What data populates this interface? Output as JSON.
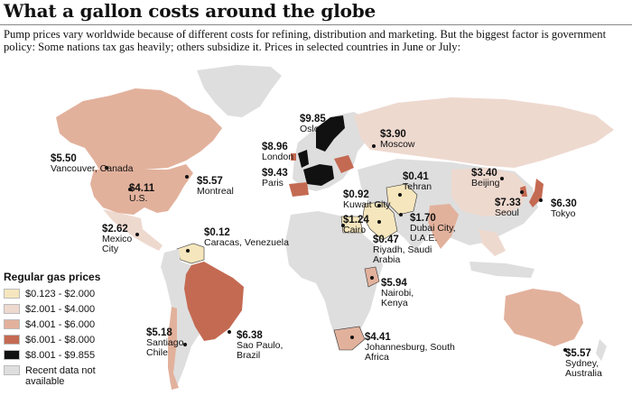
{
  "title": "What a gallon costs around the globe",
  "intro": "Pump prices vary worldwide because of different costs for refining, distribution and marketing. But the biggest factor is government policy: Some nations tax gas heavily; others subsidize it. Prices in selected countries in June or July:",
  "legend": {
    "title": "Regular gas prices",
    "items": [
      {
        "label": "$0.123 - $2.000",
        "color": "#f5e6bd"
      },
      {
        "label": "$2.001 - $4.000",
        "color": "#eed9cf"
      },
      {
        "label": "$4.001 - $6.000",
        "color": "#e2b19c"
      },
      {
        "label": "$6.001 - $8.000",
        "color": "#c46a52"
      },
      {
        "label": "$8.001 - $9.855",
        "color": "#111111"
      },
      {
        "label": "Recent data not available",
        "color": "#dedede"
      }
    ]
  },
  "cities": [
    {
      "key": "vancouver",
      "price": "$5.50",
      "place": "Vancouver, Canada"
    },
    {
      "key": "us",
      "price": "$4.11",
      "place": "U.S."
    },
    {
      "key": "montreal",
      "price": "$5.57",
      "place": "Montreal"
    },
    {
      "key": "mexico",
      "price": "$2.62",
      "place": "Mexico City"
    },
    {
      "key": "caracas",
      "price": "$0.12",
      "place": "Caracas, Venezuela"
    },
    {
      "key": "santiago",
      "price": "$5.18",
      "place": "Santiago, Chile"
    },
    {
      "key": "saopaulo",
      "price": "$6.38",
      "place": "Sao Paulo, Brazil"
    },
    {
      "key": "oslo",
      "price": "$9.85",
      "place": "Oslo"
    },
    {
      "key": "london",
      "price": "$8.96",
      "place": "London"
    },
    {
      "key": "paris",
      "price": "$9.43",
      "place": "Paris"
    },
    {
      "key": "moscow",
      "price": "$3.90",
      "place": "Moscow"
    },
    {
      "key": "tehran",
      "price": "$0.41",
      "place": "Tehran"
    },
    {
      "key": "kuwait",
      "price": "$0.92",
      "place": "Kuwait City"
    },
    {
      "key": "cairo",
      "price": "$1.24",
      "place": "Cairo"
    },
    {
      "key": "dubai",
      "price": "$1.70",
      "place": "Dubai City, U.A.E."
    },
    {
      "key": "riyadh",
      "price": "$0.47",
      "place": "Riyadh, Saudi Arabia"
    },
    {
      "key": "nairobi",
      "price": "$5.94",
      "place": "Nairobi, Kenya"
    },
    {
      "key": "johannesburg",
      "price": "$4.41",
      "place": "Johannesburg, South Africa"
    },
    {
      "key": "beijing",
      "price": "$3.40",
      "place": "Beijing"
    },
    {
      "key": "seoul",
      "price": "$7.33",
      "place": "Seoul"
    },
    {
      "key": "tokyo",
      "price": "$6.30",
      "place": "Tokyo"
    },
    {
      "key": "sydney",
      "price": "$5.57",
      "place": "Sydney, Australia"
    }
  ]
}
